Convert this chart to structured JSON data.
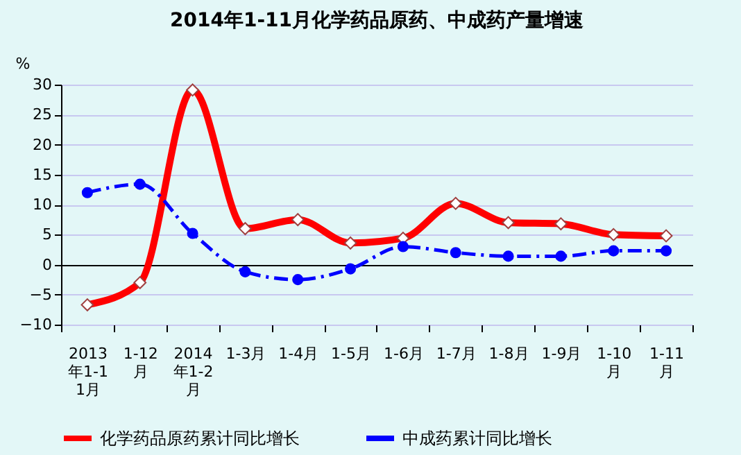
{
  "chart_data": {
    "type": "line",
    "title": "2014年1-11月化学药品原药、中成药产量增速",
    "ylabel": "%",
    "categories": [
      "2013年1-11月",
      "1-12月",
      "2014年1-2月",
      "1-3月",
      "1-4月",
      "1-5月",
      "1-6月",
      "1-7月",
      "1-8月",
      "1-9月",
      "1-10月",
      "1-11月"
    ],
    "series": [
      {
        "name": "化学药品原药累计同比增长",
        "color": "#ff0000",
        "marker": "diamond",
        "line_style": "solid",
        "values": [
          -6.7,
          -3.0,
          29.1,
          6.0,
          7.5,
          3.6,
          4.4,
          10.2,
          7.0,
          6.8,
          5.0,
          4.8
        ]
      },
      {
        "name": "中成药累计同比增长",
        "color": "#0000ff",
        "marker": "circle",
        "line_style": "dashed",
        "values": [
          12.0,
          13.4,
          5.2,
          -1.2,
          -2.5,
          -0.7,
          3.0,
          2.0,
          1.4,
          1.4,
          2.3,
          2.3
        ]
      }
    ],
    "ylim": [
      -10,
      30
    ],
    "yticks": [
      -10,
      -5,
      0,
      5,
      10,
      15,
      20,
      25,
      30
    ],
    "grid": "y",
    "legend": "bottom"
  }
}
